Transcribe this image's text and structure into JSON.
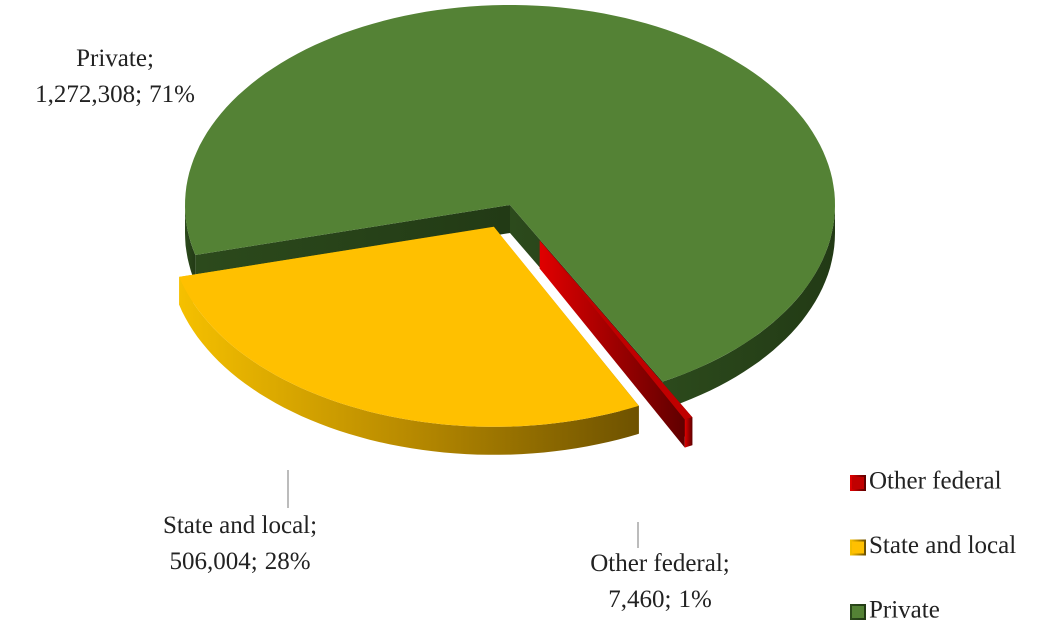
{
  "chart_data": {
    "type": "pie",
    "categories": [
      "Other federal",
      "State and local",
      "Private"
    ],
    "values": [
      7460,
      506004,
      1272308
    ],
    "value_labels": [
      "7,460",
      "506,004",
      "1,272,308"
    ],
    "percent_labels": [
      "1%",
      "28%",
      "71%"
    ],
    "label_separator": ";",
    "colors": [
      "#c00000",
      "#ffc000",
      "#548235"
    ],
    "legend": "right"
  }
}
